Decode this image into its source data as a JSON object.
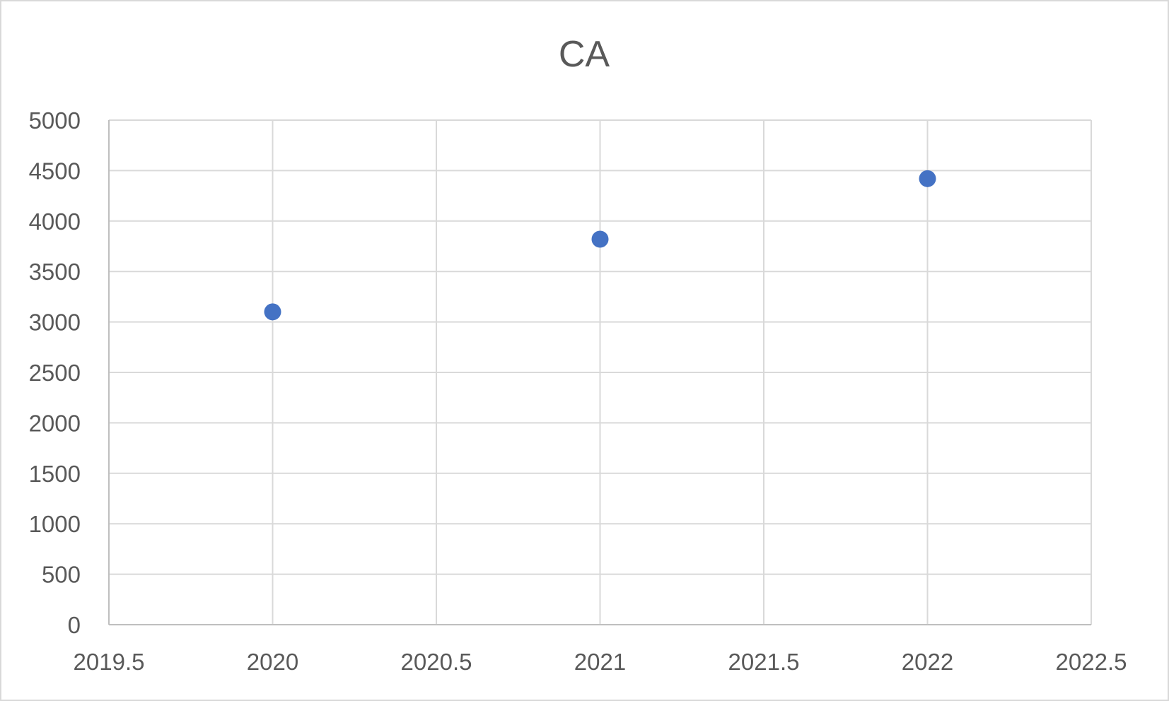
{
  "chart_data": {
    "type": "scatter",
    "title": "CA",
    "xlabel": "",
    "ylabel": "",
    "xlim": [
      2019.5,
      2022.5
    ],
    "ylim": [
      0,
      5000
    ],
    "x_ticks": [
      "2019.5",
      "2020",
      "2020.5",
      "2021",
      "2021.5",
      "2022",
      "2022.5"
    ],
    "y_ticks": [
      "0",
      "500",
      "1000",
      "1500",
      "2000",
      "2500",
      "3000",
      "3500",
      "4000",
      "4500",
      "5000"
    ],
    "grid": true,
    "legend": "none",
    "series": [
      {
        "x": [
          2020,
          2021,
          2022
        ],
        "y": [
          3100,
          3820,
          4420
        ],
        "color": "#4472c4"
      }
    ]
  }
}
